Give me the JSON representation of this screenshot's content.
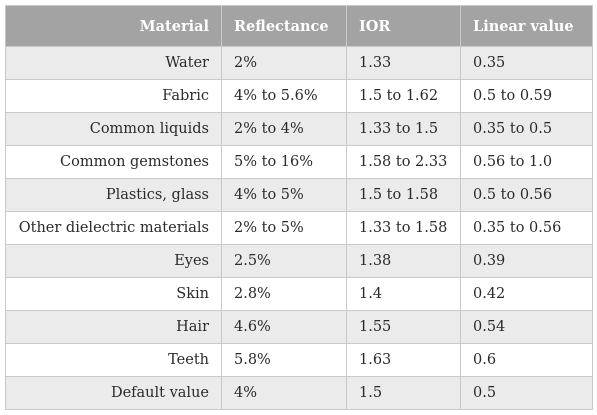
{
  "table": {
    "headers": [
      "Material",
      "Reflectance",
      "IOR",
      "Linear value"
    ],
    "rows": [
      {
        "material": "Water",
        "reflectance": "2%",
        "ior": "1.33",
        "linear": "0.35"
      },
      {
        "material": "Fabric",
        "reflectance": "4% to 5.6%",
        "ior": "1.5 to 1.62",
        "linear": "0.5 to 0.59"
      },
      {
        "material": "Common liquids",
        "reflectance": "2% to 4%",
        "ior": "1.33 to 1.5",
        "linear": "0.35 to 0.5"
      },
      {
        "material": "Common gemstones",
        "reflectance": "5% to 16%",
        "ior": "1.58 to 2.33",
        "linear": "0.56 to 1.0"
      },
      {
        "material": "Plastics, glass",
        "reflectance": "4% to 5%",
        "ior": "1.5 to 1.58",
        "linear": "0.5 to 0.56"
      },
      {
        "material": "Other dielectric materials",
        "reflectance": "2% to 5%",
        "ior": "1.33 to 1.58",
        "linear": "0.35 to 0.56"
      },
      {
        "material": "Eyes",
        "reflectance": "2.5%",
        "ior": "1.38",
        "linear": "0.39"
      },
      {
        "material": "Skin",
        "reflectance": "2.8%",
        "ior": "1.4",
        "linear": "0.42"
      },
      {
        "material": "Hair",
        "reflectance": "4.6%",
        "ior": "1.55",
        "linear": "0.54"
      },
      {
        "material": "Teeth",
        "reflectance": "5.8%",
        "ior": "1.63",
        "linear": "0.6"
      },
      {
        "material": "Default value",
        "reflectance": "4%",
        "ior": "1.5",
        "linear": "0.5"
      }
    ]
  },
  "colors": {
    "header_bg": "#a3a3a3",
    "header_text": "#ffffff",
    "row_alt_bg": "#ebebeb",
    "row_bg": "#ffffff",
    "border": "#c9c9c9",
    "text": "#2a2a2a"
  }
}
